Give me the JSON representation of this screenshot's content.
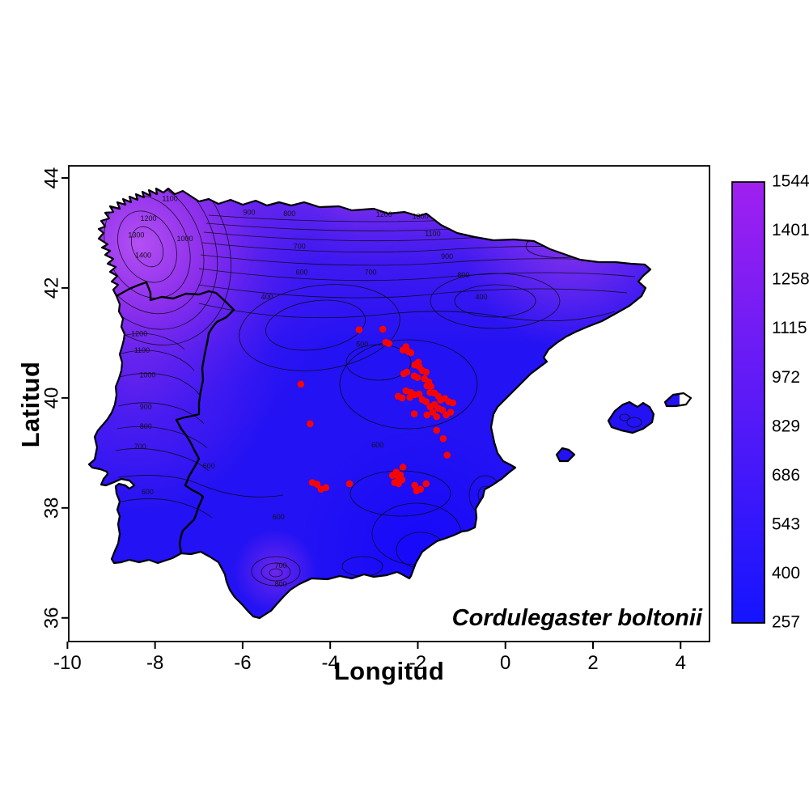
{
  "figure": {
    "background": "#ffffff",
    "xlabel": "Longitud",
    "ylabel": "Latitud",
    "species_label": "Cordulegaster boltonii"
  },
  "chart_data": {
    "type": "heatmap",
    "subtype": "filled-contour-map-with-occurrence-scatter",
    "title": "Cordulegaster boltonii",
    "xlabel": "Longitud",
    "ylabel": "Latitud",
    "x_ticks": [
      -10,
      -8,
      -6,
      -4,
      -2,
      0,
      2,
      4
    ],
    "y_ticks": [
      36,
      38,
      40,
      42,
      44
    ],
    "xlim": [
      -9.97,
      4.66
    ],
    "ylim": [
      35.57,
      44.22
    ],
    "grid": false,
    "colorbar": {
      "position": "right",
      "min": 257,
      "max": 1544,
      "tick_labels": [
        257,
        400,
        543,
        686,
        829,
        972,
        1115,
        1258,
        1401,
        1544
      ],
      "color_low": "#1414ff",
      "color_high": "#a020f0"
    },
    "contour_levels": [
      400,
      500,
      600,
      700,
      800,
      900,
      1000,
      1100,
      1200,
      1300,
      1400
    ],
    "contour_labels": [
      {
        "value": "1400",
        "lon": -8.27,
        "lat": 42.55
      },
      {
        "value": "1300",
        "lon": -8.43,
        "lat": 42.92
      },
      {
        "value": "1200",
        "lon": -8.15,
        "lat": 43.22
      },
      {
        "value": "1100",
        "lon": -7.66,
        "lat": 43.58
      },
      {
        "value": "1000",
        "lon": -7.32,
        "lat": 42.85
      },
      {
        "value": "900",
        "lon": -5.85,
        "lat": 43.33
      },
      {
        "value": "800",
        "lon": -4.93,
        "lat": 43.31
      },
      {
        "value": "1200",
        "lon": -2.77,
        "lat": 43.29
      },
      {
        "value": "1300",
        "lon": -1.94,
        "lat": 43.26
      },
      {
        "value": "1100",
        "lon": -1.66,
        "lat": 42.94
      },
      {
        "value": "900",
        "lon": -1.33,
        "lat": 42.53
      },
      {
        "value": "800",
        "lon": -0.96,
        "lat": 42.19
      },
      {
        "value": "700",
        "lon": -4.7,
        "lat": 42.71
      },
      {
        "value": "700",
        "lon": -3.08,
        "lat": 42.24
      },
      {
        "value": "600",
        "lon": -4.65,
        "lat": 42.24
      },
      {
        "value": "400",
        "lon": -5.44,
        "lat": 41.79
      },
      {
        "value": "400",
        "lon": -0.55,
        "lat": 41.79
      },
      {
        "value": "1200",
        "lon": -8.36,
        "lat": 41.12
      },
      {
        "value": "1100",
        "lon": -8.3,
        "lat": 40.82
      },
      {
        "value": "1000",
        "lon": -8.17,
        "lat": 40.37
      },
      {
        "value": "900",
        "lon": -8.21,
        "lat": 39.79
      },
      {
        "value": "800",
        "lon": -8.21,
        "lat": 39.44
      },
      {
        "value": "700",
        "lon": -8.34,
        "lat": 39.07
      },
      {
        "value": "600",
        "lon": -6.77,
        "lat": 38.72
      },
      {
        "value": "600",
        "lon": -8.17,
        "lat": 38.25
      },
      {
        "value": "600",
        "lon": -5.18,
        "lat": 37.79
      },
      {
        "value": "500",
        "lon": -3.27,
        "lat": 40.93
      },
      {
        "value": "600",
        "lon": -2.92,
        "lat": 39.1
      },
      {
        "value": "700",
        "lon": -5.13,
        "lat": 36.91
      },
      {
        "value": "800",
        "lon": -5.13,
        "lat": 36.57
      }
    ],
    "occurrences": {
      "label": "Cordulegaster boltonii",
      "marker_color": "#f60505",
      "points_lon_lat": [
        [
          -3.34,
          41.24
        ],
        [
          -2.8,
          41.25
        ],
        [
          -2.73,
          41.01
        ],
        [
          -2.66,
          40.99
        ],
        [
          -2.27,
          40.93
        ],
        [
          -2.34,
          40.87
        ],
        [
          -2.21,
          40.84
        ],
        [
          -2.16,
          40.82
        ],
        [
          -1.99,
          40.65
        ],
        [
          -2.07,
          40.6
        ],
        [
          -1.97,
          40.57
        ],
        [
          -1.9,
          40.5
        ],
        [
          -1.81,
          40.47
        ],
        [
          -2.25,
          40.47
        ],
        [
          -2.32,
          40.44
        ],
        [
          -2.08,
          40.4
        ],
        [
          -2.01,
          40.37
        ],
        [
          -1.85,
          40.35
        ],
        [
          -1.75,
          40.29
        ],
        [
          -1.79,
          40.22
        ],
        [
          -1.7,
          40.21
        ],
        [
          -2.16,
          40.1
        ],
        [
          -2.27,
          40.13
        ],
        [
          -2.45,
          40.03
        ],
        [
          -2.36,
          40.0
        ],
        [
          -2.18,
          40.01
        ],
        [
          -2.07,
          40.06
        ],
        [
          -1.97,
          40.07
        ],
        [
          -1.9,
          39.97
        ],
        [
          -1.81,
          39.93
        ],
        [
          -1.72,
          40.1
        ],
        [
          -1.62,
          40.09
        ],
        [
          -1.53,
          40.03
        ],
        [
          -1.48,
          39.96
        ],
        [
          -1.38,
          39.99
        ],
        [
          -1.29,
          39.93
        ],
        [
          -1.2,
          39.91
        ],
        [
          -1.62,
          39.88
        ],
        [
          -1.72,
          39.84
        ],
        [
          -1.53,
          39.81
        ],
        [
          -1.44,
          39.78
        ],
        [
          -1.66,
          39.74
        ],
        [
          -1.79,
          39.69
        ],
        [
          -1.57,
          39.66
        ],
        [
          -1.35,
          39.69
        ],
        [
          -1.25,
          39.74
        ],
        [
          -2.08,
          39.71
        ],
        [
          -4.67,
          40.25
        ],
        [
          -4.46,
          39.53
        ],
        [
          -1.57,
          39.41
        ],
        [
          -1.42,
          39.26
        ],
        [
          -1.33,
          38.96
        ],
        [
          -4.41,
          38.46
        ],
        [
          -4.3,
          38.43
        ],
        [
          -4.21,
          38.34
        ],
        [
          -4.1,
          38.37
        ],
        [
          -3.56,
          38.44
        ],
        [
          -2.58,
          38.59
        ],
        [
          -2.49,
          38.65
        ],
        [
          -2.45,
          38.56
        ],
        [
          -2.4,
          38.6
        ],
        [
          -2.36,
          38.51
        ],
        [
          -2.53,
          38.46
        ],
        [
          -2.44,
          38.44
        ],
        [
          -2.34,
          38.74
        ],
        [
          -2.07,
          38.41
        ],
        [
          -2.03,
          38.31
        ],
        [
          -1.94,
          38.34
        ],
        [
          -1.81,
          38.44
        ]
      ]
    }
  }
}
